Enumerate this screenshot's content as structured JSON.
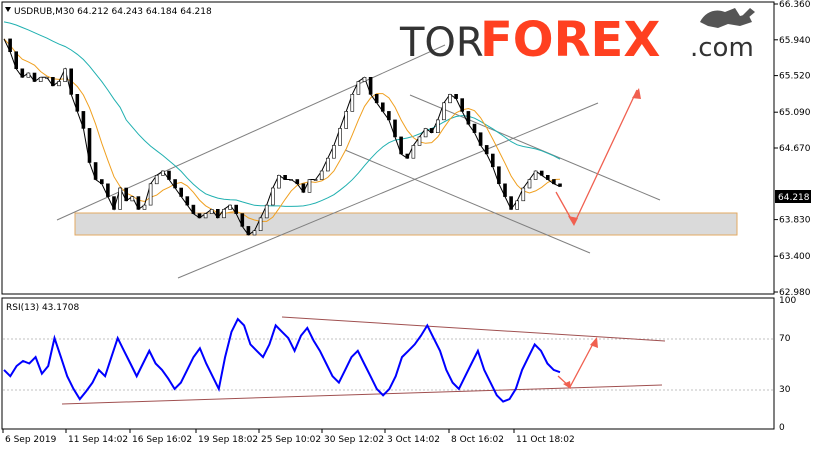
{
  "header": {
    "symbol_line": "USDRUB,M30  64.212 64.243 64.184 64.218"
  },
  "watermark": {
    "prefix": "TOR",
    "brand": "FOREX",
    "suffix": ".com"
  },
  "colors": {
    "price_line": "#000000",
    "candle_up": "#ffffff",
    "candle_down": "#000000",
    "ma_fast": "#f0a020",
    "ma_slow": "#20b0b0",
    "channel": "#808080",
    "support_zone": "#d6d6d6",
    "support_zone_border": "#e0a050",
    "forecast_arrow": "#f06050",
    "rsi_line": "#0000ff",
    "rsi_trend": "#a05050",
    "brand_red": "#ff4020",
    "brand_dark": "#333333"
  },
  "chart_data": [
    {
      "type": "line",
      "title": "USDRUB,M30",
      "series": [
        {
          "name": "USDRUB",
          "values": [
            65.95,
            65.8,
            65.6,
            65.5,
            65.55,
            65.45,
            65.5,
            65.5,
            65.4,
            65.45,
            65.6,
            65.3,
            65.1,
            64.9,
            64.5,
            64.3,
            64.25,
            64.1,
            63.95,
            64.2,
            64.05,
            64.1,
            63.95,
            64.0,
            64.25,
            64.35,
            64.4,
            64.3,
            64.2,
            64.1,
            64.0,
            63.9,
            63.85,
            63.9,
            63.95,
            63.85,
            63.95,
            64.0,
            63.9,
            63.75,
            63.65,
            63.7,
            63.85,
            64.0,
            64.2,
            64.35,
            64.3,
            64.3,
            64.25,
            64.15,
            64.3,
            64.3,
            64.4,
            64.55,
            64.7,
            64.9,
            65.1,
            65.3,
            65.45,
            65.5,
            65.3,
            65.2,
            65.1,
            65.0,
            64.8,
            64.6,
            64.55,
            64.7,
            64.8,
            64.9,
            64.85,
            65.0,
            65.2,
            65.3,
            65.25,
            65.1,
            64.95,
            64.85,
            64.7,
            64.6,
            64.45,
            64.25,
            64.1,
            63.95,
            64.05,
            64.2,
            64.3,
            64.4,
            64.35,
            64.3,
            64.25,
            64.218
          ]
        }
      ],
      "yticks": [
        "66.360",
        "65.940",
        "65.520",
        "65.090",
        "64.670",
        "64.218",
        "63.830",
        "63.400",
        "62.980"
      ],
      "ylim": [
        62.98,
        66.36
      ],
      "current_price": "64.218",
      "xticks": [
        "6 Sep 2019",
        "11 Sep 14:02",
        "16 Sep 16:02",
        "19 Sep 18:02",
        "25 Sep 10:02",
        "30 Sep 12:02",
        "3 Oct 14:02",
        "8 Oct 16:02",
        "11 Oct 18:02"
      ],
      "grid": false
    },
    {
      "type": "line",
      "title": "RSI(13) 43.1708",
      "series": [
        {
          "name": "RSI(13)",
          "values": [
            45,
            40,
            48,
            52,
            50,
            55,
            42,
            48,
            70,
            55,
            40,
            30,
            22,
            28,
            35,
            45,
            40,
            55,
            70,
            60,
            50,
            40,
            50,
            60,
            50,
            45,
            38,
            30,
            35,
            45,
            55,
            62,
            50,
            40,
            30,
            55,
            75,
            85,
            80,
            65,
            60,
            55,
            65,
            80,
            75,
            70,
            60,
            72,
            78,
            68,
            60,
            50,
            40,
            35,
            45,
            55,
            60,
            50,
            40,
            30,
            25,
            30,
            40,
            55,
            60,
            65,
            72,
            80,
            70,
            60,
            45,
            35,
            30,
            40,
            50,
            60,
            45,
            35,
            25,
            20,
            22,
            30,
            45,
            55,
            65,
            60,
            50,
            45,
            43.17
          ]
        }
      ],
      "yticks": [
        "100",
        "70",
        "30",
        "0"
      ],
      "ylim": [
        0,
        100
      ],
      "grid": false
    }
  ]
}
